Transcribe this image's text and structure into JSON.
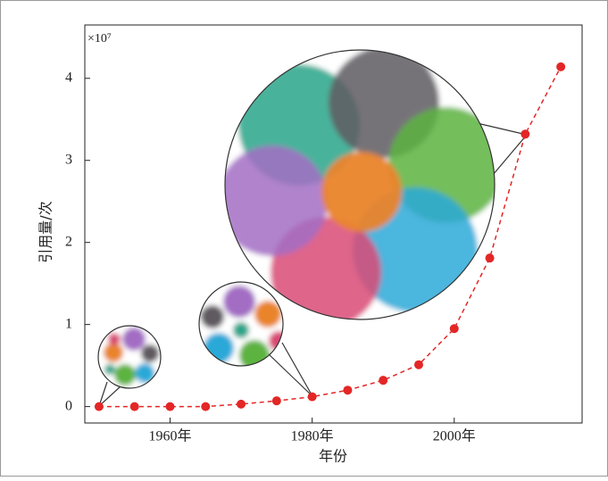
{
  "chart_data": {
    "type": "line",
    "y_unit_label": "×10⁷",
    "xlabel": "年份",
    "ylabel": "引用量/次",
    "x": [
      1950,
      1955,
      1960,
      1965,
      1970,
      1975,
      1980,
      1985,
      1990,
      1995,
      2000,
      2005,
      2010,
      2015
    ],
    "values": [
      0,
      0,
      0,
      0,
      0.03,
      0.07,
      0.12,
      0.2,
      0.32,
      0.51,
      0.95,
      1.81,
      3.32,
      4.14
    ],
    "color": "#e32626",
    "xlim": [
      1948,
      2018
    ],
    "ylim": [
      -0.2,
      4.65
    ],
    "xticks": [
      {
        "value": 1960,
        "label": "1960年"
      },
      {
        "value": 1980,
        "label": "1980年"
      },
      {
        "value": 2000,
        "label": "2000年"
      }
    ],
    "yticks": [
      0,
      1,
      2,
      3,
      4
    ]
  }
}
